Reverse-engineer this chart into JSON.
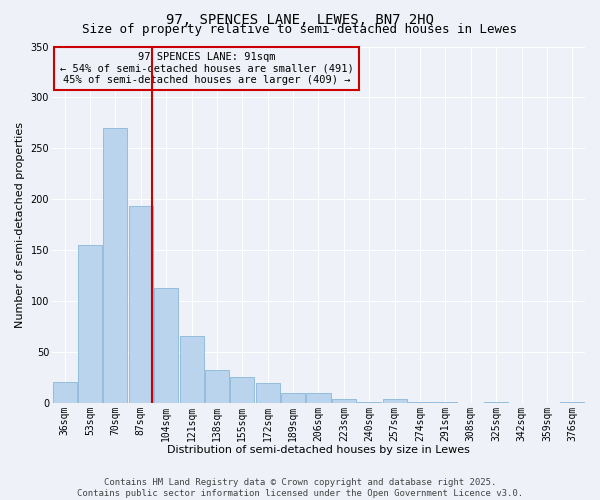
{
  "title": "97, SPENCES LANE, LEWES, BN7 2HQ",
  "subtitle": "Size of property relative to semi-detached houses in Lewes",
  "xlabel": "Distribution of semi-detached houses by size in Lewes",
  "ylabel": "Number of semi-detached properties",
  "categories": [
    "36sqm",
    "53sqm",
    "70sqm",
    "87sqm",
    "104sqm",
    "121sqm",
    "138sqm",
    "155sqm",
    "172sqm",
    "189sqm",
    "206sqm",
    "223sqm",
    "240sqm",
    "257sqm",
    "274sqm",
    "291sqm",
    "308sqm",
    "325sqm",
    "342sqm",
    "359sqm",
    "376sqm"
  ],
  "values": [
    20,
    155,
    270,
    193,
    113,
    66,
    32,
    25,
    19,
    10,
    10,
    4,
    1,
    4,
    1,
    1,
    0,
    1,
    0,
    0,
    1
  ],
  "bar_color": "#bad4ee",
  "bar_edge_color": "#7aadd4",
  "vline_color": "#cc0000",
  "vline_x": 3.43,
  "annotation_title": "97 SPENCES LANE: 91sqm",
  "annotation_line2": "← 54% of semi-detached houses are smaller (491)",
  "annotation_line3": "45% of semi-detached houses are larger (409) →",
  "annotation_box_color": "#cc0000",
  "ylim": [
    0,
    350
  ],
  "yticks": [
    0,
    50,
    100,
    150,
    200,
    250,
    300,
    350
  ],
  "footer_line1": "Contains HM Land Registry data © Crown copyright and database right 2025.",
  "footer_line2": "Contains public sector information licensed under the Open Government Licence v3.0.",
  "background_color": "#eef2f8",
  "title_fontsize": 10,
  "subtitle_fontsize": 9,
  "axis_label_fontsize": 8,
  "tick_fontsize": 7,
  "annotation_fontsize": 7.5,
  "footer_fontsize": 6.5
}
